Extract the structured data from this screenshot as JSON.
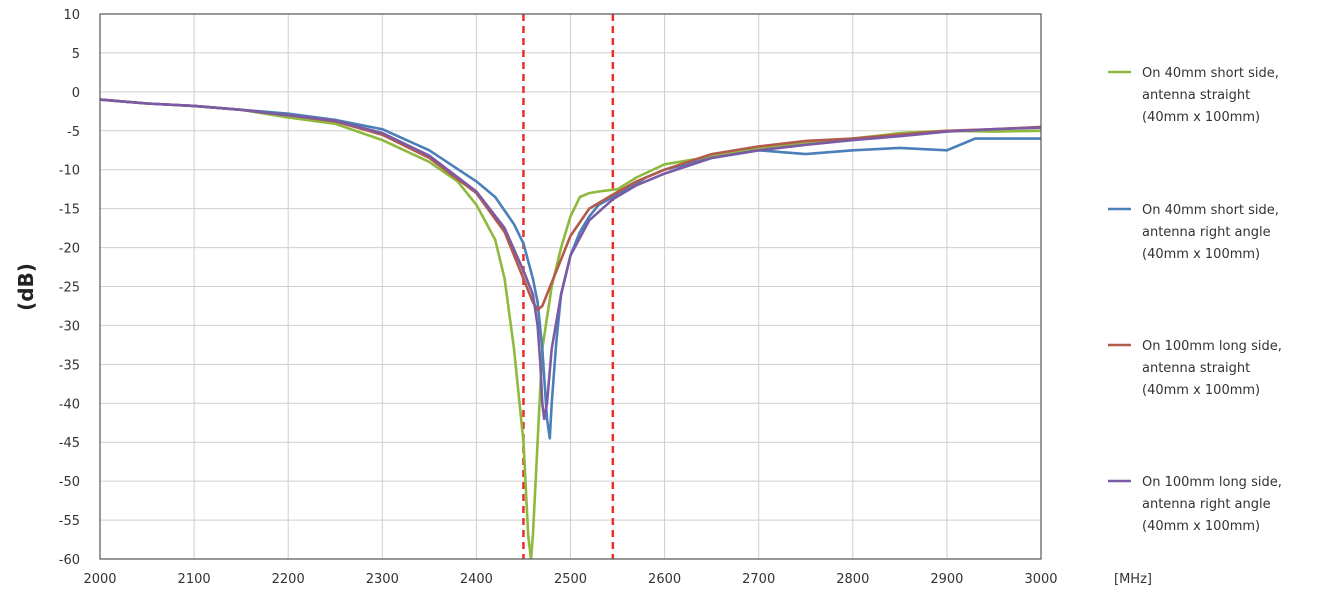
{
  "chart_data": {
    "type": "line",
    "title": "",
    "ylabel": "(dB)",
    "xunit": "[MHz]",
    "xlim": [
      2000,
      3000
    ],
    "ylim": [
      -60,
      10
    ],
    "xticks": [
      2000,
      2100,
      2200,
      2300,
      2400,
      2500,
      2600,
      2700,
      2800,
      2900,
      3000
    ],
    "yticks": [
      10,
      5,
      0,
      -5,
      -10,
      -15,
      -20,
      -25,
      -30,
      -35,
      -40,
      -45,
      -50,
      -55,
      -60
    ],
    "grid": true,
    "legend_position": "right",
    "markers": [
      {
        "x": 2450,
        "color": "#e8302a",
        "style": "dashed"
      },
      {
        "x": 2545,
        "color": "#e8302a",
        "style": "dashed"
      }
    ],
    "series": [
      {
        "name": [
          "On 40mm short side,",
          "antenna straight",
          "(40mm x 100mm)"
        ],
        "color": "#8fb93e",
        "x": [
          2000,
          2050,
          2100,
          2150,
          2200,
          2250,
          2300,
          2350,
          2380,
          2400,
          2420,
          2430,
          2440,
          2450,
          2455,
          2458,
          2460,
          2465,
          2470,
          2480,
          2490,
          2500,
          2510,
          2520,
          2530,
          2550,
          2570,
          2600,
          2650,
          2700,
          2750,
          2800,
          2850,
          2900,
          2950,
          3000
        ],
        "y": [
          -1,
          -1.5,
          -1.8,
          -2.3,
          -3.3,
          -4.1,
          -6.2,
          -9,
          -11.5,
          -14.5,
          -19,
          -24,
          -33,
          -45,
          -57,
          -60,
          -57,
          -45,
          -33,
          -25,
          -20,
          -16,
          -13.5,
          -13,
          -12.8,
          -12.5,
          -11,
          -9.3,
          -8.3,
          -7.3,
          -6.5,
          -6,
          -5.3,
          -5,
          -5.1,
          -5
        ]
      },
      {
        "name": [
          "On 40mm short side,",
          "antenna right angle",
          "(40mm x 100mm)"
        ],
        "color": "#4a7fb8",
        "x": [
          2000,
          2050,
          2100,
          2150,
          2200,
          2250,
          2300,
          2350,
          2400,
          2420,
          2440,
          2450,
          2460,
          2465,
          2470,
          2475,
          2478,
          2480,
          2485,
          2490,
          2500,
          2510,
          2520,
          2530,
          2545,
          2560,
          2580,
          2600,
          2650,
          2700,
          2750,
          2800,
          2850,
          2900,
          2920,
          2930,
          2950,
          3000
        ],
        "y": [
          -1,
          -1.5,
          -1.8,
          -2.3,
          -2.8,
          -3.6,
          -4.8,
          -7.5,
          -11.5,
          -13.5,
          -17,
          -19.5,
          -24,
          -27,
          -33,
          -42,
          -44.5,
          -40,
          -32,
          -26,
          -21,
          -18,
          -16,
          -14.5,
          -13.5,
          -12.5,
          -11,
          -10,
          -8.5,
          -7.5,
          -8,
          -7.5,
          -7.2,
          -7.5,
          -6.5,
          -6,
          -6,
          -6
        ]
      },
      {
        "name": [
          "On 100mm long side,",
          "antenna straight",
          "(40mm x 100mm)"
        ],
        "color": "#b45a4b",
        "x": [
          2000,
          2050,
          2100,
          2150,
          2200,
          2250,
          2300,
          2350,
          2400,
          2430,
          2450,
          2460,
          2465,
          2470,
          2480,
          2490,
          2500,
          2520,
          2545,
          2570,
          2600,
          2650,
          2700,
          2750,
          2800,
          2850,
          2900,
          2950,
          3000
        ],
        "y": [
          -1,
          -1.5,
          -1.8,
          -2.3,
          -3,
          -3.8,
          -5.5,
          -8.5,
          -13,
          -18,
          -24,
          -27,
          -28,
          -27.5,
          -24.5,
          -21.5,
          -18.5,
          -15,
          -13.2,
          -11.5,
          -10,
          -8,
          -7,
          -6.3,
          -6,
          -5.5,
          -5,
          -4.8,
          -4.5
        ]
      },
      {
        "name": [
          "On 100mm long side,",
          "antenna right angle",
          "(40mm x 100mm)"
        ],
        "color": "#7b5aa6",
        "x": [
          2000,
          2050,
          2100,
          2150,
          2200,
          2250,
          2300,
          2350,
          2400,
          2430,
          2450,
          2460,
          2465,
          2468,
          2470,
          2472,
          2475,
          2480,
          2490,
          2500,
          2520,
          2545,
          2570,
          2600,
          2650,
          2700,
          2750,
          2800,
          2850,
          2900,
          2950,
          3000
        ],
        "y": [
          -1,
          -1.5,
          -1.8,
          -2.3,
          -3,
          -3.7,
          -5.3,
          -8.2,
          -12.8,
          -17.5,
          -23,
          -26,
          -30,
          -35,
          -40,
          -42,
          -40,
          -33,
          -26,
          -21,
          -16.5,
          -13.8,
          -12,
          -10.5,
          -8.5,
          -7.5,
          -6.8,
          -6.2,
          -5.7,
          -5.1,
          -4.8,
          -4.6
        ]
      }
    ]
  }
}
